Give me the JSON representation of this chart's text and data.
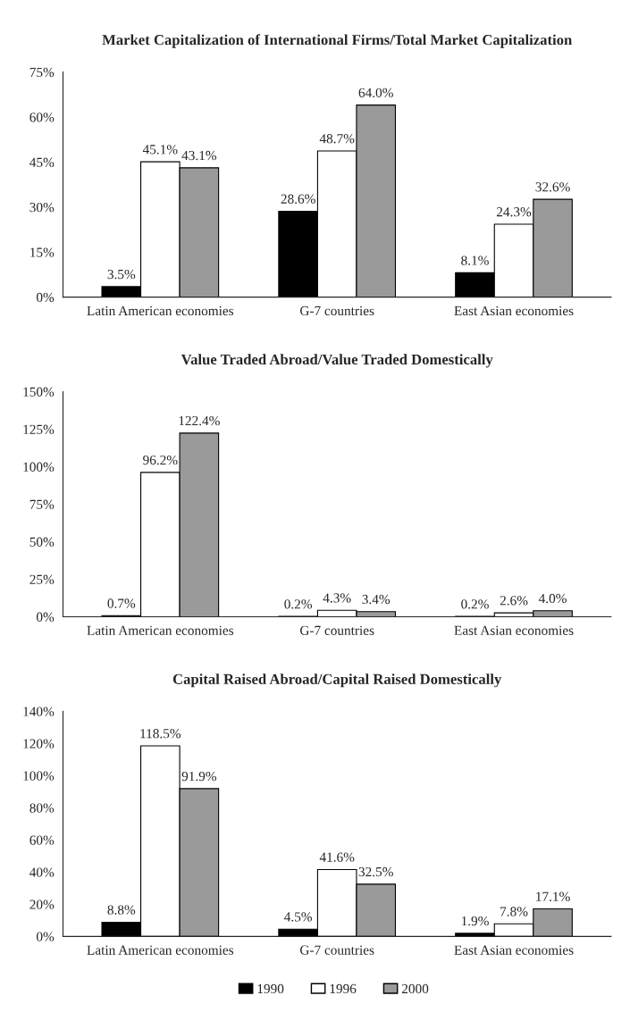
{
  "chart_data": [
    {
      "type": "bar",
      "title": "Market Capitalization of International Firms/Total Market Capitalization",
      "categories": [
        "Latin American economies",
        "G-7 countries",
        "East Asian economies"
      ],
      "series": [
        {
          "name": "1990",
          "color": "#000000",
          "values": [
            3.5,
            28.6,
            8.1
          ],
          "value_labels": [
            "3.5%",
            "28.6%",
            "8.1%"
          ]
        },
        {
          "name": "1996",
          "color": "#ffffff",
          "values": [
            45.1,
            48.7,
            24.3
          ],
          "value_labels": [
            "45.1%",
            "48.7%",
            "24.3%"
          ]
        },
        {
          "name": "2000",
          "color": "#9a9a9a",
          "values": [
            43.1,
            64.0,
            32.6
          ],
          "value_labels": [
            "43.1%",
            "64.0%",
            "32.6%"
          ]
        }
      ],
      "ylim": [
        0,
        75
      ],
      "yticks": [
        {
          "value": 0,
          "label": "0%"
        },
        {
          "value": 15,
          "label": "15%"
        },
        {
          "value": 30,
          "label": "30%"
        },
        {
          "value": 45,
          "label": "45%"
        },
        {
          "value": 60,
          "label": "60%"
        },
        {
          "value": 75,
          "label": "75%"
        }
      ],
      "grid": false,
      "legend": "bottom"
    },
    {
      "type": "bar",
      "title": "Value Traded Abroad/Value Traded Domestically",
      "categories": [
        "Latin American economies",
        "G-7 countries",
        "East Asian economies"
      ],
      "series": [
        {
          "name": "1990",
          "color": "#000000",
          "values": [
            0.7,
            0.2,
            0.2
          ],
          "value_labels": [
            "0.7%",
            "0.2%",
            "0.2%"
          ]
        },
        {
          "name": "1996",
          "color": "#ffffff",
          "values": [
            96.2,
            4.3,
            2.6
          ],
          "value_labels": [
            "96.2%",
            "4.3%",
            "2.6%"
          ]
        },
        {
          "name": "2000",
          "color": "#9a9a9a",
          "values": [
            122.4,
            3.4,
            4.0
          ],
          "value_labels": [
            "122.4%",
            "3.4%",
            "4.0%"
          ]
        }
      ],
      "ylim": [
        0,
        150
      ],
      "yticks": [
        {
          "value": 0,
          "label": "0%"
        },
        {
          "value": 25,
          "label": "25%"
        },
        {
          "value": 50,
          "label": "50%"
        },
        {
          "value": 75,
          "label": "75%"
        },
        {
          "value": 100,
          "label": "100%"
        },
        {
          "value": 125,
          "label": "125%"
        },
        {
          "value": 150,
          "label": "150%"
        }
      ],
      "grid": false,
      "legend": false
    },
    {
      "type": "bar",
      "title": "Capital Raised Abroad/Capital Raised Domestically",
      "categories": [
        "Latin American economies",
        "G-7 countries",
        "East Asian economies"
      ],
      "series": [
        {
          "name": "1990",
          "color": "#000000",
          "values": [
            8.8,
            4.5,
            1.9
          ],
          "value_labels": [
            "8.8%",
            "4.5%",
            "1.9%"
          ]
        },
        {
          "name": "1996",
          "color": "#ffffff",
          "values": [
            118.5,
            41.6,
            7.8
          ],
          "value_labels": [
            "118.5%",
            "41.6%",
            "7.8%"
          ]
        },
        {
          "name": "2000",
          "color": "#9a9a9a",
          "values": [
            91.9,
            32.5,
            17.1
          ],
          "value_labels": [
            "91.9%",
            "32.5%",
            "17.1%"
          ]
        }
      ],
      "ylim": [
        0,
        140
      ],
      "yticks": [
        {
          "value": 0,
          "label": "0%"
        },
        {
          "value": 20,
          "label": "20%"
        },
        {
          "value": 40,
          "label": "40%"
        },
        {
          "value": 60,
          "label": "60%"
        },
        {
          "value": 80,
          "label": "80%"
        },
        {
          "value": 100,
          "label": "100%"
        },
        {
          "value": 120,
          "label": "120%"
        },
        {
          "value": 140,
          "label": "140%"
        }
      ],
      "grid": false,
      "legend": false
    }
  ]
}
